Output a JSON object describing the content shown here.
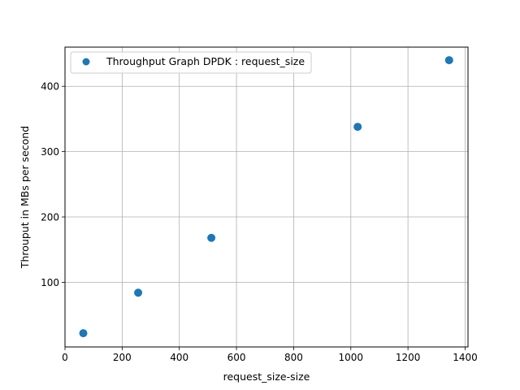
{
  "chart_data": {
    "type": "scatter",
    "title": "",
    "xlabel": "request_size-size",
    "ylabel": "Throuput in MBs per second",
    "xlim": [
      0,
      1410
    ],
    "ylim": [
      1,
      460
    ],
    "xticks": [
      0,
      200,
      400,
      600,
      800,
      1000,
      1200,
      1400
    ],
    "yticks": [
      100,
      200,
      300,
      400
    ],
    "grid": true,
    "legend_position": "upper-left",
    "series": [
      {
        "name": "Throughput Graph DPDK : request_size",
        "color": "#1f77b4",
        "x": [
          64,
          256,
          512,
          1024,
          1344
        ],
        "y": [
          22,
          84,
          168,
          338,
          440
        ]
      }
    ]
  }
}
